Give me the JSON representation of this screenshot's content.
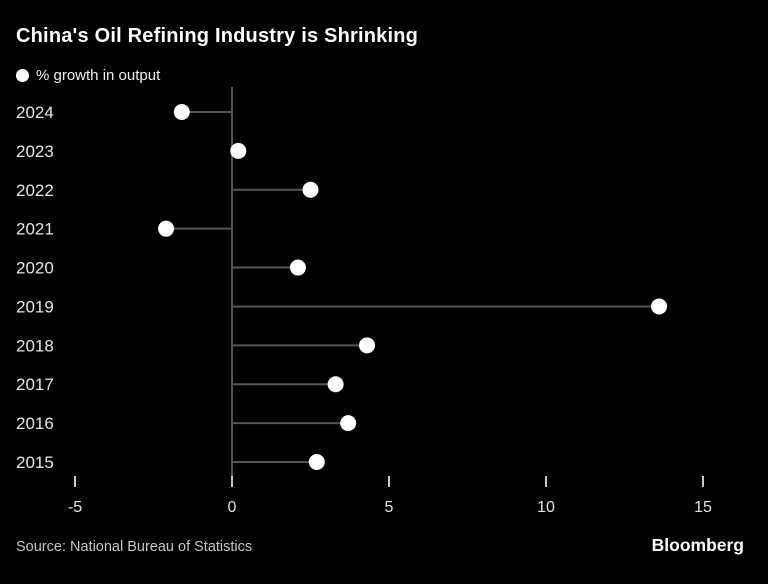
{
  "header": {
    "title": "China's Oil Refining Industry is Shrinking"
  },
  "legend": {
    "marker": "dot-icon",
    "label": "% growth in output"
  },
  "chart_data": {
    "type": "lollipop",
    "orientation": "horizontal",
    "title": "China's Oil Refining Industry is Shrinking",
    "series_label": "% growth in output",
    "categories": [
      "2024",
      "2023",
      "2022",
      "2021",
      "2020",
      "2019",
      "2018",
      "2017",
      "2016",
      "2015"
    ],
    "values": [
      -1.6,
      0.2,
      2.5,
      -2.1,
      2.1,
      13.6,
      4.3,
      3.3,
      3.7,
      2.7
    ],
    "xlim": [
      -5,
      15
    ],
    "xticks": [
      -5,
      0,
      5,
      10,
      15
    ],
    "baseline": 0,
    "grid": false,
    "xlabel": "",
    "ylabel": "",
    "colors": {
      "background": "#000000",
      "dot": "#ffffff",
      "stem": "#555555",
      "axis": "#555555",
      "tick": "#c9c9c9",
      "tick_label": "#e3e3e3",
      "category_label": "#e6e6e6"
    }
  },
  "footer": {
    "source": "Source: National Bureau of Statistics",
    "brand": "Bloomberg"
  }
}
